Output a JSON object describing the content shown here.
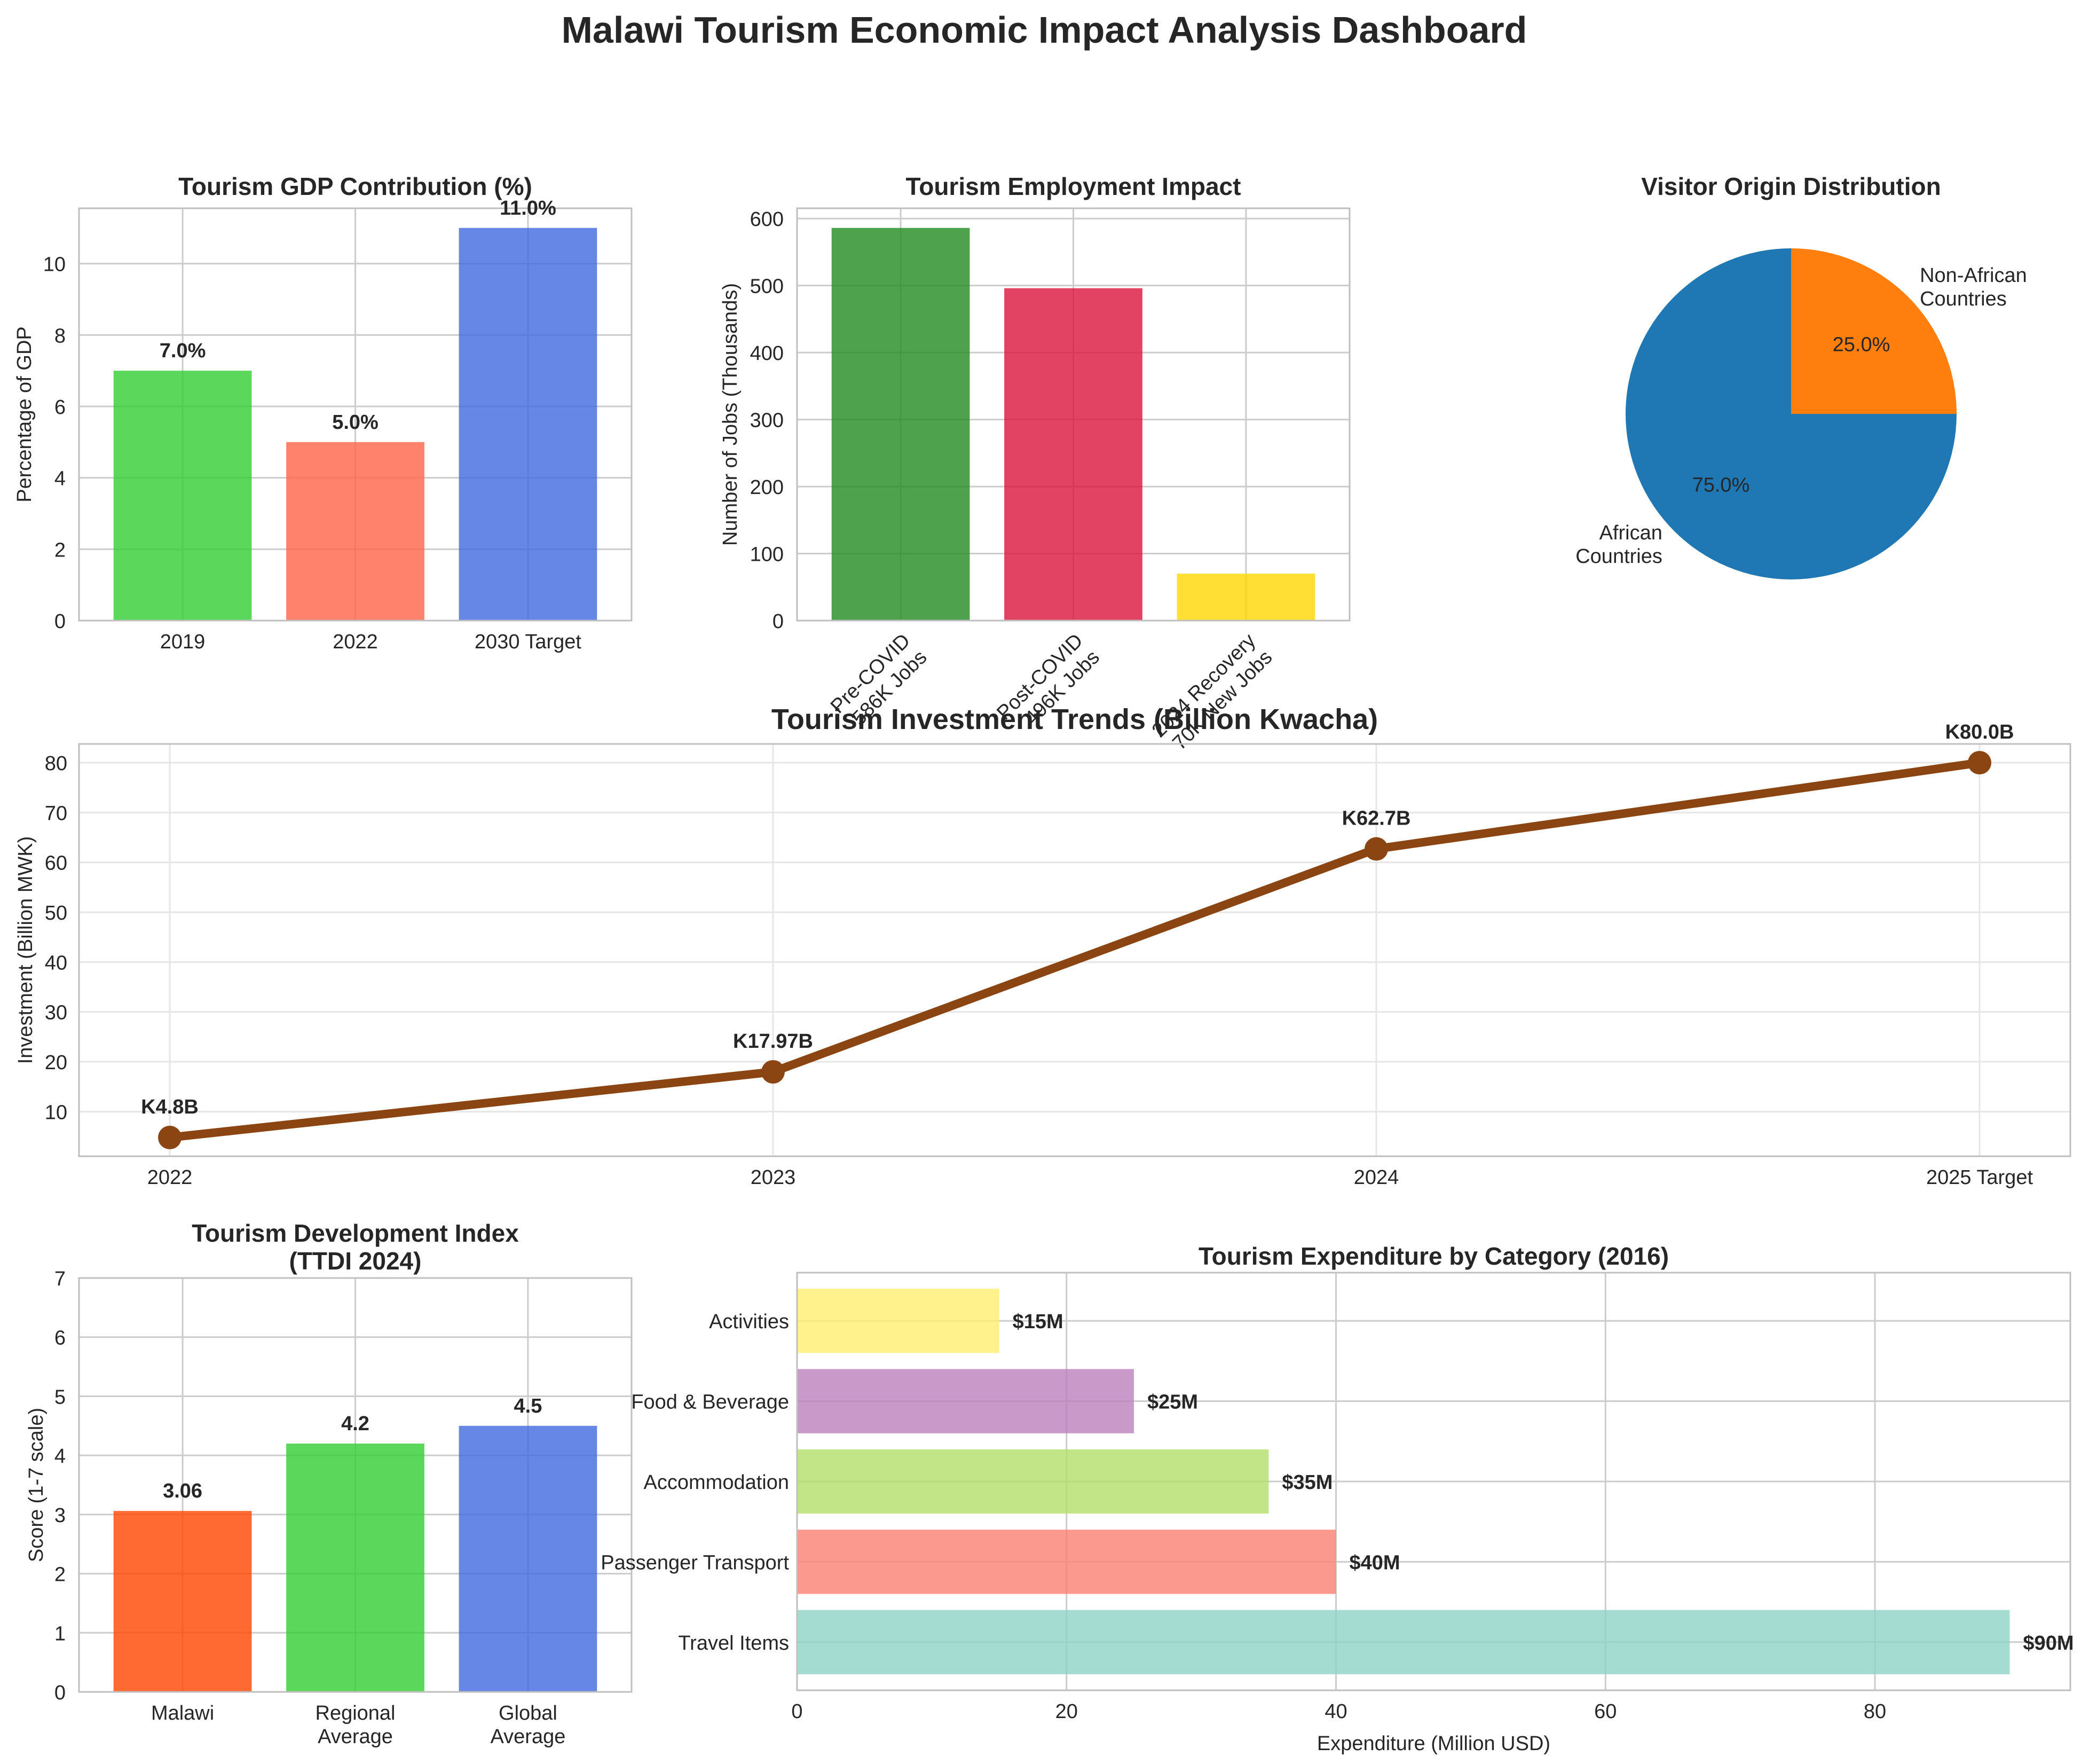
{
  "dashboard": {
    "title": "Malawi Tourism Economic Impact Analysis Dashboard"
  },
  "colors": {
    "grid": "#cccccc",
    "axis": "#bfbfbf",
    "text": "#262626",
    "investment_line": "#8B4513"
  },
  "chart_data": [
    {
      "id": "gdp",
      "type": "bar",
      "title": "Tourism GDP Contribution (%)",
      "ylabel": "Percentage of GDP",
      "xlabel": "",
      "categories": [
        "2019",
        "2022",
        "2030 Target"
      ],
      "values": [
        7.0,
        5.0,
        11.0
      ],
      "value_labels": [
        "7.0%",
        "5.0%",
        "11.0%"
      ],
      "colors": [
        "#32CD32",
        "#FF6347",
        "#4169E1"
      ],
      "ylim": [
        0,
        11.55
      ],
      "yticks": [
        0,
        2,
        4,
        6,
        8,
        10
      ],
      "grid": true
    },
    {
      "id": "employment",
      "type": "bar",
      "title": "Tourism Employment Impact",
      "ylabel": "Number of Jobs (Thousands)",
      "xlabel": "",
      "categories": [
        "Pre-COVID\n586K Jobs",
        "Post-COVID\n496K Jobs",
        "2024 Recovery\n70K New Jobs"
      ],
      "values": [
        586,
        496,
        70
      ],
      "colors": [
        "#228B22",
        "#DC143C",
        "#FFD700"
      ],
      "ylim": [
        0,
        615.3
      ],
      "yticks": [
        0,
        100,
        200,
        300,
        400,
        500,
        600
      ],
      "grid": true
    },
    {
      "id": "origin",
      "type": "pie",
      "title": "Visitor Origin Distribution",
      "labels": [
        "African\nCountries",
        "Non-African\nCountries"
      ],
      "values": [
        75.0,
        25.0
      ],
      "pct_labels": [
        "75.0%",
        "25.0%"
      ],
      "colors": [
        "#1f77b4",
        "#ff7f0e"
      ]
    },
    {
      "id": "investment",
      "type": "line",
      "title": "Tourism Investment Trends (Billion Kwacha)",
      "ylabel": "Investment (Billion MWK)",
      "xlabel": "",
      "categories": [
        "2022",
        "2023",
        "2024",
        "2025 Target"
      ],
      "values": [
        4.8,
        17.97,
        62.7,
        80.0
      ],
      "value_labels": [
        "K4.8B",
        "K17.97B",
        "K62.7B",
        "K80.0B"
      ],
      "ylim": [
        1.04,
        83.76
      ],
      "yticks": [
        10,
        20,
        30,
        40,
        50,
        60,
        70,
        80
      ],
      "grid": true
    },
    {
      "id": "ttdi",
      "type": "bar",
      "title": "Tourism Development Index\n(TTDI 2024)",
      "ylabel": "Score (1-7 scale)",
      "xlabel": "",
      "categories": [
        "Malawi",
        "Regional\nAverage",
        "Global\nAverage"
      ],
      "values": [
        3.06,
        4.2,
        4.5
      ],
      "value_labels": [
        "3.06",
        "4.2",
        "4.5"
      ],
      "colors": [
        "#FF4500",
        "#32CD32",
        "#4169E1"
      ],
      "ylim": [
        0,
        7
      ],
      "yticks": [
        0,
        1,
        2,
        3,
        4,
        5,
        6,
        7
      ],
      "grid": true
    },
    {
      "id": "expenditure",
      "type": "bar",
      "orientation": "horizontal",
      "title": "Tourism Expenditure by Category (2016)",
      "xlabel": "Expenditure (Million USD)",
      "ylabel": "",
      "categories": [
        "Travel Items",
        "Passenger Transport",
        "Accommodation",
        "Food & Beverage",
        "Activities"
      ],
      "values": [
        90,
        40,
        35,
        25,
        15
      ],
      "value_labels": [
        "$90M",
        "$40M",
        "$35M",
        "$25M",
        "$15M"
      ],
      "colors": [
        "#8dd3c7",
        "#fb8072",
        "#b3de69",
        "#bc80bd",
        "#ffed6f"
      ],
      "xlim": [
        0,
        94.5
      ],
      "xticks": [
        0,
        20,
        40,
        60,
        80
      ],
      "grid": true
    }
  ]
}
